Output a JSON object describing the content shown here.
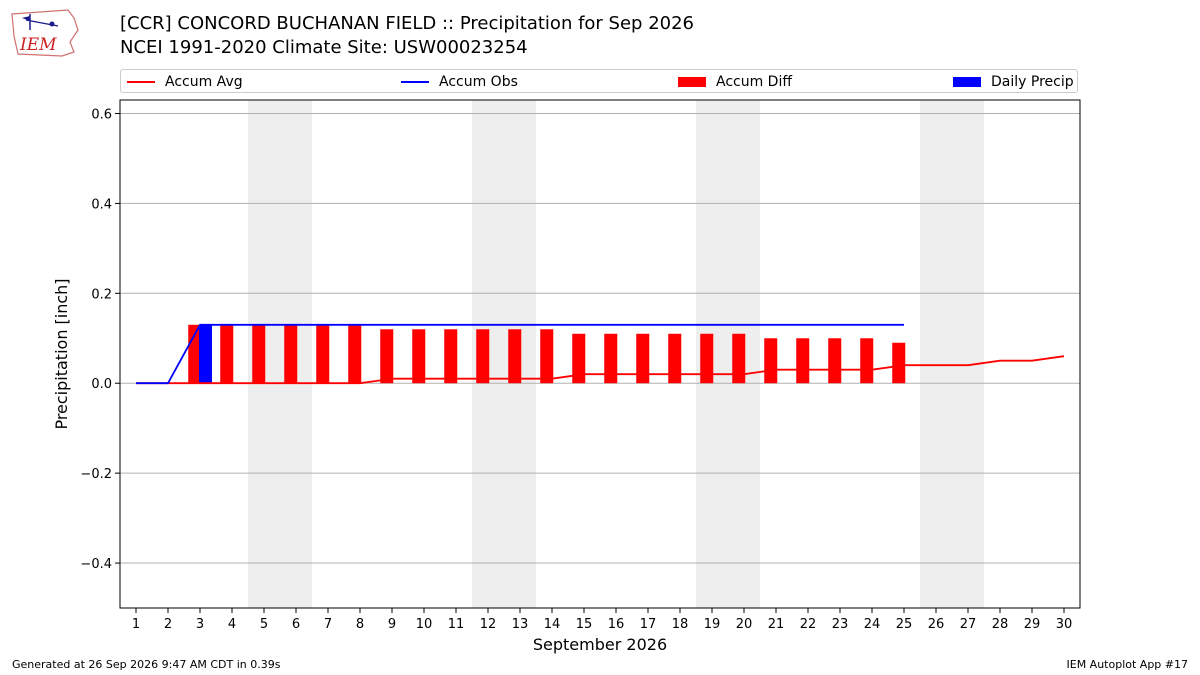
{
  "header": {
    "title_line1": "[CCR] CONCORD BUCHANAN FIELD :: Precipitation for Sep 2026",
    "title_line2": "NCEI 1991-2020 Climate Site: USW00023254",
    "logo_text": "IEM"
  },
  "legend": {
    "placement": "top",
    "items": [
      {
        "label": "Accum Avg",
        "type": "line",
        "color": "#ff0000"
      },
      {
        "label": "Accum Obs",
        "type": "line",
        "color": "#0000ff"
      },
      {
        "label": "Accum Diff",
        "type": "bar",
        "color": "#ff0000"
      },
      {
        "label": "Daily Precip",
        "type": "bar",
        "color": "#0000ff"
      }
    ]
  },
  "footer": {
    "generated": "Generated at 26 Sep 2026 9:47 AM CDT in 0.39s",
    "app": "IEM Autoplot App #17"
  },
  "chart_data": {
    "type": "bar",
    "xlabel": "September 2026",
    "ylabel": "Precipitation [inch]",
    "ylim": [
      -0.5,
      0.63
    ],
    "xlim": [
      0.5,
      30.5
    ],
    "grid": true,
    "x": [
      1,
      2,
      3,
      4,
      5,
      6,
      7,
      8,
      9,
      10,
      11,
      12,
      13,
      14,
      15,
      16,
      17,
      18,
      19,
      20,
      21,
      22,
      23,
      24,
      25,
      26,
      27,
      28,
      29,
      30
    ],
    "yticks": [
      -0.4,
      -0.2,
      0.0,
      0.2,
      0.4,
      0.6
    ],
    "yticklabels": [
      "−0.4",
      "−0.2",
      "0.0",
      "0.2",
      "0.4",
      "0.6"
    ],
    "xticklabels": [
      "1",
      "2",
      "3",
      "4",
      "5",
      "6",
      "7",
      "8",
      "9",
      "10",
      "11",
      "12",
      "13",
      "14",
      "15",
      "16",
      "17",
      "18",
      "19",
      "20",
      "21",
      "22",
      "23",
      "24",
      "25",
      "26",
      "27",
      "28",
      "29",
      "30"
    ],
    "weekend_bands": [
      [
        4.5,
        6.5
      ],
      [
        11.5,
        13.5
      ],
      [
        18.5,
        20.5
      ],
      [
        25.5,
        27.5
      ]
    ],
    "series": [
      {
        "name": "Accum Avg",
        "kind": "line",
        "color": "#ff0000",
        "x": [
          1,
          2,
          3,
          4,
          5,
          6,
          7,
          8,
          9,
          10,
          11,
          12,
          13,
          14,
          15,
          16,
          17,
          18,
          19,
          20,
          21,
          22,
          23,
          24,
          25,
          26,
          27,
          28,
          29,
          30
        ],
        "values": [
          0,
          0,
          0,
          0,
          0,
          0,
          0,
          0,
          0.01,
          0.01,
          0.01,
          0.01,
          0.01,
          0.01,
          0.02,
          0.02,
          0.02,
          0.02,
          0.02,
          0.02,
          0.03,
          0.03,
          0.03,
          0.03,
          0.04,
          0.04,
          0.04,
          0.05,
          0.05,
          0.06
        ]
      },
      {
        "name": "Accum Obs",
        "kind": "line",
        "color": "#0000ff",
        "x": [
          1,
          2,
          3,
          4,
          5,
          6,
          7,
          8,
          9,
          10,
          11,
          12,
          13,
          14,
          15,
          16,
          17,
          18,
          19,
          20,
          21,
          22,
          23,
          24,
          25
        ],
        "values": [
          0,
          0,
          0.13,
          0.13,
          0.13,
          0.13,
          0.13,
          0.13,
          0.13,
          0.13,
          0.13,
          0.13,
          0.13,
          0.13,
          0.13,
          0.13,
          0.13,
          0.13,
          0.13,
          0.13,
          0.13,
          0.13,
          0.13,
          0.13,
          0.13
        ]
      },
      {
        "name": "Accum Diff",
        "kind": "bar",
        "color": "#ff0000",
        "x": [
          1,
          2,
          3,
          4,
          5,
          6,
          7,
          8,
          9,
          10,
          11,
          12,
          13,
          14,
          15,
          16,
          17,
          18,
          19,
          20,
          21,
          22,
          23,
          24,
          25
        ],
        "values": [
          0,
          0,
          0.13,
          0.13,
          0.13,
          0.13,
          0.13,
          0.13,
          0.12,
          0.12,
          0.12,
          0.12,
          0.12,
          0.12,
          0.11,
          0.11,
          0.11,
          0.11,
          0.11,
          0.11,
          0.1,
          0.1,
          0.1,
          0.1,
          0.09
        ]
      },
      {
        "name": "Daily Precip",
        "kind": "bar",
        "color": "#0000ff",
        "x": [
          3
        ],
        "values": [
          0.13
        ]
      }
    ]
  }
}
